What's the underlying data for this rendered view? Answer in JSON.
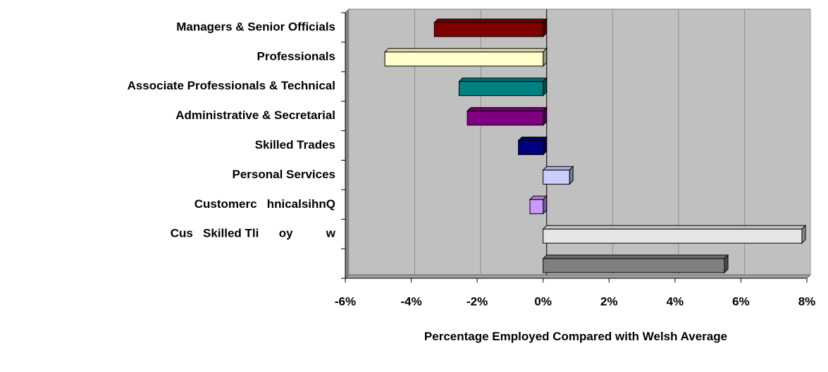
{
  "chart_data": {
    "type": "hbar3d",
    "categories": [
      "Managers & Senior Officials",
      "Professionals",
      "Associate Professionals & Technical",
      "Administrative & Secretarial",
      "Skilled Trades",
      "Personal Services",
      "Customerc   hnicalsihnQ",
      "Cus   Skilled Tli      oy          w",
      null
    ],
    "values": [
      -3.3,
      -4.8,
      -2.55,
      -2.3,
      -0.75,
      0.8,
      -0.4,
      7.85,
      5.5
    ],
    "colors": [
      "#800000",
      "#ffffcc",
      "#008080",
      "#800080",
      "#000080",
      "#ccccff",
      "#cc99ff",
      "#e6e6e6",
      "#808080"
    ],
    "xlabel": "Percentage Employed Compared with Welsh Average",
    "xlim": [
      -6,
      8
    ],
    "xticks": [
      {
        "value": -6,
        "label": "-6%"
      },
      {
        "value": -4,
        "label": "-4%"
      },
      {
        "value": -2,
        "label": "-2%"
      },
      {
        "value": 0,
        "label": "0%"
      },
      {
        "value": 2,
        "label": "2%"
      },
      {
        "value": 4,
        "label": "4%"
      },
      {
        "value": 6,
        "label": "6%"
      },
      {
        "value": 8,
        "label": "8%"
      }
    ],
    "grid": true
  }
}
